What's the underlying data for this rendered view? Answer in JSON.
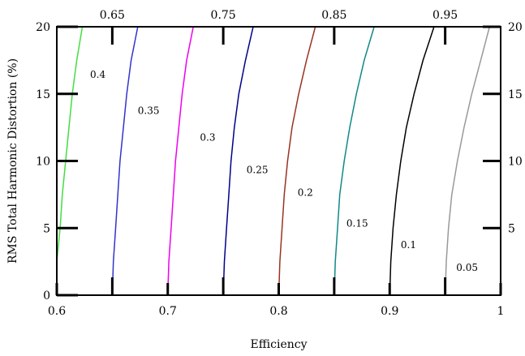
{
  "chart_data": {
    "type": "line",
    "xlabel": "Efficiency",
    "ylabel": "RMS Total Harmonic Distortion (%)",
    "xlim": [
      0.6,
      1.0
    ],
    "ylim": [
      0,
      20
    ],
    "x_ticks": [
      "0.6",
      "0.7",
      "0.8",
      "0.9",
      "1"
    ],
    "x_tick_values": [
      0.6,
      0.7,
      0.8,
      0.9,
      1.0
    ],
    "top_ticks": [
      "0.65",
      "0.75",
      "0.85",
      "0.95"
    ],
    "top_tick_values": [
      0.65,
      0.75,
      0.85,
      0.95
    ],
    "y_ticks": [
      "0",
      "5",
      "10",
      "15",
      "20"
    ],
    "y_tick_values": [
      0,
      5,
      10,
      15,
      20
    ],
    "right_ticks": [
      "5",
      "10",
      "15",
      "20"
    ],
    "right_tick_values": [
      5,
      10,
      15,
      20
    ],
    "grid": false,
    "series": [
      {
        "label": "0.4",
        "color": "#44dd44",
        "points": [
          [
            0.6,
            2.5
          ],
          [
            0.603,
            5
          ],
          [
            0.605,
            7.5
          ],
          [
            0.608,
            10
          ],
          [
            0.611,
            12.5
          ],
          [
            0.614,
            15
          ],
          [
            0.618,
            17.5
          ],
          [
            0.623,
            20
          ]
        ],
        "label_at": [
          0.63,
          16.2
        ]
      },
      {
        "label": "0.35",
        "color": "#3333cc",
        "points": [
          [
            0.65,
            0
          ],
          [
            0.651,
            2.5
          ],
          [
            0.653,
            5
          ],
          [
            0.655,
            7.5
          ],
          [
            0.657,
            10
          ],
          [
            0.66,
            12.5
          ],
          [
            0.663,
            15
          ],
          [
            0.667,
            17.5
          ],
          [
            0.673,
            20
          ]
        ],
        "label_at": [
          0.673,
          13.5
        ]
      },
      {
        "label": "0.3",
        "color": "#ee00ee",
        "points": [
          [
            0.7,
            0
          ],
          [
            0.701,
            2.5
          ],
          [
            0.703,
            5
          ],
          [
            0.705,
            7.5
          ],
          [
            0.707,
            10
          ],
          [
            0.71,
            12.5
          ],
          [
            0.713,
            15
          ],
          [
            0.717,
            17.5
          ],
          [
            0.723,
            20
          ]
        ],
        "label_at": [
          0.729,
          11.5
        ]
      },
      {
        "label": "0.25",
        "color": "#000088",
        "points": [
          [
            0.75,
            0
          ],
          [
            0.751,
            2.5
          ],
          [
            0.753,
            5
          ],
          [
            0.755,
            7.5
          ],
          [
            0.757,
            10
          ],
          [
            0.76,
            12.5
          ],
          [
            0.764,
            15
          ],
          [
            0.77,
            17.5
          ],
          [
            0.777,
            20
          ]
        ],
        "label_at": [
          0.771,
          9.1
        ]
      },
      {
        "label": "0.2",
        "color": "#993322",
        "points": [
          [
            0.8,
            0
          ],
          [
            0.801,
            2.5
          ],
          [
            0.803,
            5
          ],
          [
            0.805,
            7.5
          ],
          [
            0.808,
            10
          ],
          [
            0.812,
            12.5
          ],
          [
            0.818,
            15
          ],
          [
            0.825,
            17.5
          ],
          [
            0.833,
            20
          ]
        ],
        "label_at": [
          0.817,
          7.4
        ]
      },
      {
        "label": "0.15",
        "color": "#118888",
        "points": [
          [
            0.85,
            0
          ],
          [
            0.851,
            2.5
          ],
          [
            0.853,
            5
          ],
          [
            0.855,
            7.5
          ],
          [
            0.859,
            10
          ],
          [
            0.864,
            12.5
          ],
          [
            0.87,
            15
          ],
          [
            0.877,
            17.5
          ],
          [
            0.886,
            20
          ]
        ],
        "label_at": [
          0.861,
          5.1
        ]
      },
      {
        "label": "0.1",
        "color": "#000000",
        "points": [
          [
            0.9,
            0
          ],
          [
            0.901,
            2.5
          ],
          [
            0.903,
            5
          ],
          [
            0.906,
            7.5
          ],
          [
            0.91,
            10
          ],
          [
            0.915,
            12.5
          ],
          [
            0.922,
            15
          ],
          [
            0.93,
            17.5
          ],
          [
            0.94,
            20
          ]
        ],
        "label_at": [
          0.91,
          3.5
        ]
      },
      {
        "label": "0.05",
        "color": "#999999",
        "points": [
          [
            0.95,
            0
          ],
          [
            0.951,
            2.5
          ],
          [
            0.953,
            5
          ],
          [
            0.956,
            7.5
          ],
          [
            0.961,
            10
          ],
          [
            0.967,
            12.5
          ],
          [
            0.974,
            15
          ],
          [
            0.982,
            17.5
          ],
          [
            0.99,
            20
          ]
        ],
        "label_at": [
          0.96,
          1.8
        ]
      }
    ]
  }
}
